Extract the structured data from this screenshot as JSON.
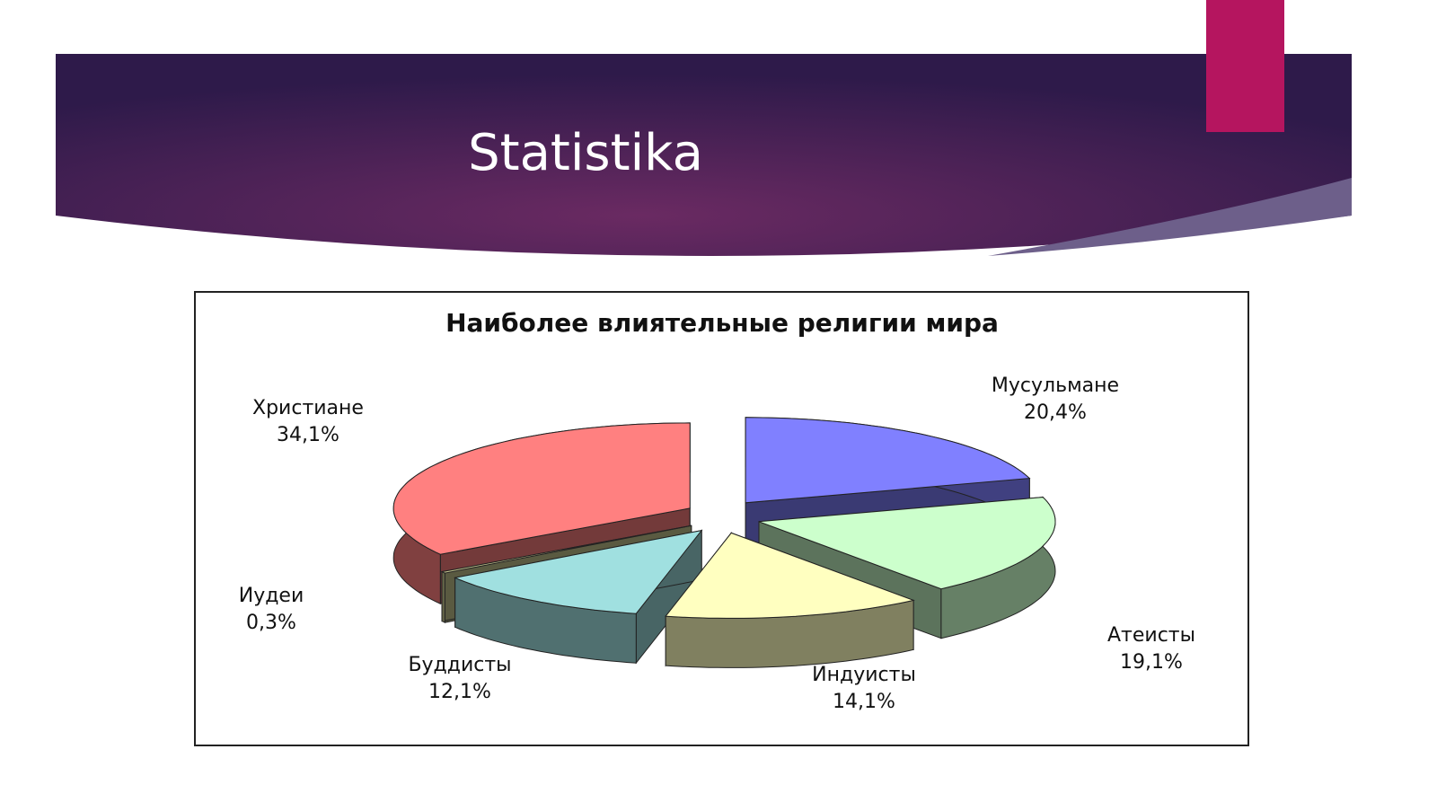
{
  "slide": {
    "title": "Statistika"
  },
  "chart_data": {
    "type": "pie3d",
    "title": "Наиболее влиятельные религии мира",
    "categories": [
      "Мусульмане",
      "Атеисты",
      "Индуисты",
      "Буддисты",
      "Иудеи",
      "Христиане"
    ],
    "values": [
      20.4,
      19.1,
      14.1,
      12.1,
      0.3,
      34.1
    ],
    "value_labels": [
      "20,4%",
      "19,1%",
      "14,1%",
      "12,1%",
      "0,3%",
      "34,1%"
    ],
    "colors": [
      "#8080ff",
      "#ccffcc",
      "#ffffc0",
      "#a0e0e0",
      "#c8c890",
      "#ff8080"
    ]
  }
}
